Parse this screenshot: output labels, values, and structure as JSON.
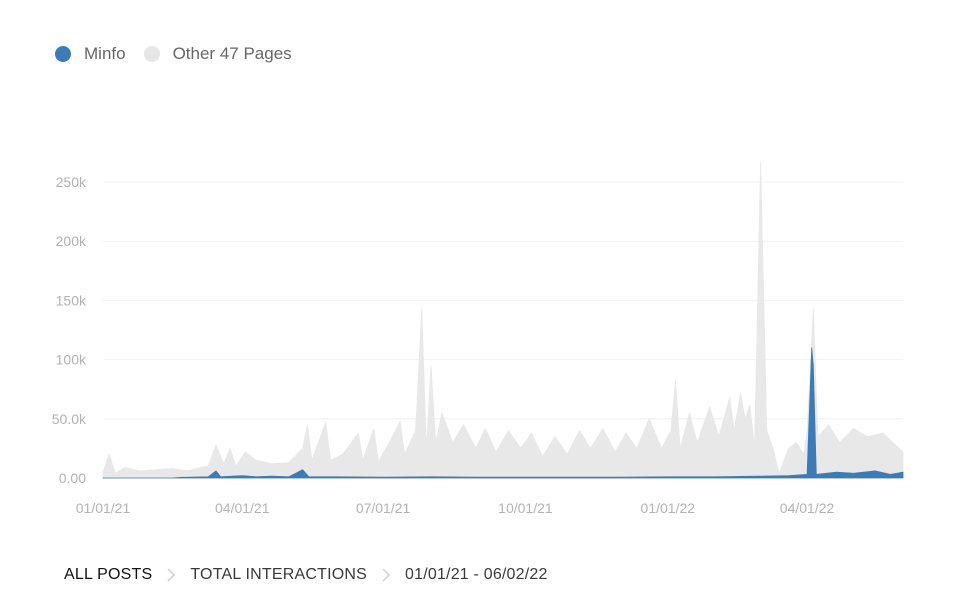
{
  "legend": {
    "items": [
      {
        "label": "Minfo",
        "color": "#3c7bb5"
      },
      {
        "label": "Other 47 Pages",
        "color": "#e6e6e6"
      }
    ]
  },
  "breadcrumb": {
    "items": [
      "ALL POSTS",
      "TOTAL INTERACTIONS",
      "01/01/21 - 06/02/22"
    ]
  },
  "chart_data": {
    "type": "area",
    "x_range": [
      "01/01/21",
      "06/02/22"
    ],
    "x_ticks": [
      "01/01/21",
      "04/01/21",
      "07/01/21",
      "10/01/21",
      "01/01/22",
      "04/01/22"
    ],
    "x_tick_dates": [
      "2021-01-01",
      "2021-04-01",
      "2021-07-01",
      "2021-10-01",
      "2022-01-01",
      "2022-04-01"
    ],
    "y_ticks": [
      "0.00",
      "50.0k",
      "100k",
      "150k",
      "200k",
      "250k"
    ],
    "y_tick_values": [
      0,
      50000,
      100000,
      150000,
      200000,
      250000
    ],
    "ylim": [
      0,
      250000
    ],
    "grid": true,
    "legend_position": "top-left",
    "series": [
      {
        "name": "Other 47 Pages",
        "color": "#e8e8e8",
        "points": [
          [
            "2021-01-01",
            5000
          ],
          [
            "2021-01-05",
            20000
          ],
          [
            "2021-01-09",
            4000
          ],
          [
            "2021-01-15",
            9000
          ],
          [
            "2021-01-25",
            6000
          ],
          [
            "2021-02-05",
            7000
          ],
          [
            "2021-02-15",
            8000
          ],
          [
            "2021-02-25",
            6000
          ],
          [
            "2021-03-05",
            9000
          ],
          [
            "2021-03-10",
            10000
          ],
          [
            "2021-03-15",
            28000
          ],
          [
            "2021-03-20",
            12000
          ],
          [
            "2021-03-24",
            25000
          ],
          [
            "2021-03-28",
            10000
          ],
          [
            "2021-04-03",
            22000
          ],
          [
            "2021-04-10",
            15000
          ],
          [
            "2021-04-20",
            12000
          ],
          [
            "2021-05-01",
            13000
          ],
          [
            "2021-05-10",
            25000
          ],
          [
            "2021-05-13",
            45000
          ],
          [
            "2021-05-16",
            15000
          ],
          [
            "2021-05-25",
            47000
          ],
          [
            "2021-05-28",
            15000
          ],
          [
            "2021-06-05",
            20000
          ],
          [
            "2021-06-15",
            38000
          ],
          [
            "2021-06-18",
            15000
          ],
          [
            "2021-06-25",
            42000
          ],
          [
            "2021-06-28",
            14000
          ],
          [
            "2021-07-05",
            30000
          ],
          [
            "2021-07-12",
            48000
          ],
          [
            "2021-07-15",
            20000
          ],
          [
            "2021-07-22",
            40000
          ],
          [
            "2021-07-26",
            143000
          ],
          [
            "2021-07-29",
            25000
          ],
          [
            "2021-08-01",
            95000
          ],
          [
            "2021-08-04",
            30000
          ],
          [
            "2021-08-08",
            55000
          ],
          [
            "2021-08-15",
            30000
          ],
          [
            "2021-08-22",
            45000
          ],
          [
            "2021-08-30",
            25000
          ],
          [
            "2021-09-05",
            42000
          ],
          [
            "2021-09-12",
            22000
          ],
          [
            "2021-09-20",
            40000
          ],
          [
            "2021-09-28",
            25000
          ],
          [
            "2021-10-05",
            38000
          ],
          [
            "2021-10-12",
            18000
          ],
          [
            "2021-10-20",
            35000
          ],
          [
            "2021-10-28",
            20000
          ],
          [
            "2021-11-05",
            40000
          ],
          [
            "2021-11-12",
            25000
          ],
          [
            "2021-11-20",
            42000
          ],
          [
            "2021-11-28",
            22000
          ],
          [
            "2021-12-05",
            38000
          ],
          [
            "2021-12-12",
            25000
          ],
          [
            "2021-12-20",
            50000
          ],
          [
            "2021-12-28",
            25000
          ],
          [
            "2022-01-03",
            40000
          ],
          [
            "2022-01-06",
            82000
          ],
          [
            "2022-01-09",
            25000
          ],
          [
            "2022-01-15",
            55000
          ],
          [
            "2022-01-20",
            30000
          ],
          [
            "2022-01-28",
            60000
          ],
          [
            "2022-02-03",
            35000
          ],
          [
            "2022-02-10",
            68000
          ],
          [
            "2022-02-13",
            40000
          ],
          [
            "2022-02-17",
            72000
          ],
          [
            "2022-02-20",
            50000
          ],
          [
            "2022-02-23",
            62000
          ],
          [
            "2022-02-26",
            25000
          ],
          [
            "2022-03-02",
            268000
          ],
          [
            "2022-03-06",
            40000
          ],
          [
            "2022-03-10",
            25000
          ],
          [
            "2022-03-14",
            4000
          ],
          [
            "2022-03-20",
            25000
          ],
          [
            "2022-03-25",
            30000
          ],
          [
            "2022-03-30",
            20000
          ],
          [
            "2022-04-01",
            40000
          ],
          [
            "2022-04-05",
            143000
          ],
          [
            "2022-04-08",
            35000
          ],
          [
            "2022-04-15",
            45000
          ],
          [
            "2022-04-22",
            30000
          ],
          [
            "2022-05-01",
            42000
          ],
          [
            "2022-05-10",
            35000
          ],
          [
            "2022-05-20",
            38000
          ],
          [
            "2022-05-28",
            28000
          ],
          [
            "2022-06-02",
            22000
          ]
        ]
      },
      {
        "name": "Minfo",
        "color": "#3c7bb5",
        "points": [
          [
            "2021-01-01",
            0
          ],
          [
            "2021-02-15",
            0
          ],
          [
            "2021-02-20",
            500
          ],
          [
            "2021-03-10",
            1000
          ],
          [
            "2021-03-15",
            6000
          ],
          [
            "2021-03-18",
            1000
          ],
          [
            "2021-04-01",
            2000
          ],
          [
            "2021-04-10",
            1000
          ],
          [
            "2021-04-20",
            1500
          ],
          [
            "2021-05-01",
            1000
          ],
          [
            "2021-05-10",
            7000
          ],
          [
            "2021-05-14",
            1000
          ],
          [
            "2021-06-01",
            1000
          ],
          [
            "2021-07-01",
            800
          ],
          [
            "2021-08-01",
            1000
          ],
          [
            "2021-09-01",
            800
          ],
          [
            "2021-10-01",
            800
          ],
          [
            "2021-11-01",
            800
          ],
          [
            "2021-12-01",
            800
          ],
          [
            "2022-01-01",
            1000
          ],
          [
            "2022-02-01",
            1000
          ],
          [
            "2022-03-01",
            1500
          ],
          [
            "2022-03-20",
            2000
          ],
          [
            "2022-04-01",
            3000
          ],
          [
            "2022-04-04",
            110000
          ],
          [
            "2022-04-05",
            95000
          ],
          [
            "2022-04-07",
            3000
          ],
          [
            "2022-04-20",
            5000
          ],
          [
            "2022-05-01",
            4000
          ],
          [
            "2022-05-15",
            6000
          ],
          [
            "2022-05-25",
            3000
          ],
          [
            "2022-06-02",
            5000
          ]
        ]
      }
    ]
  }
}
